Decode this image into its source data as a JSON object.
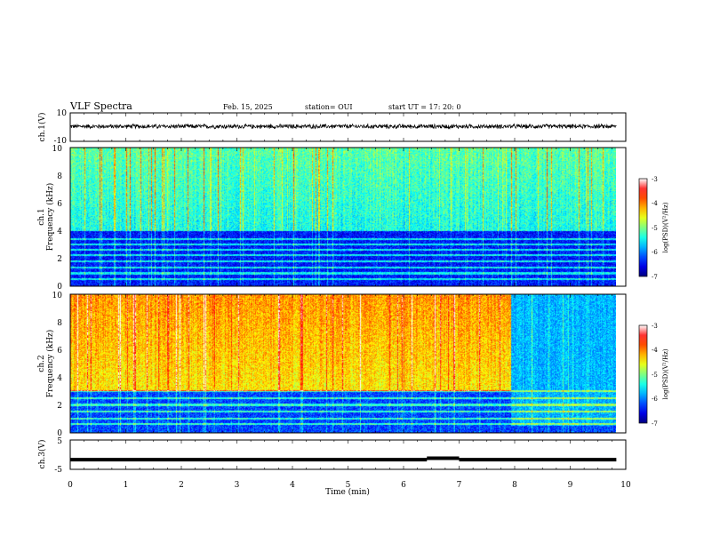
{
  "header": {
    "title": "VLF Spectra",
    "date": "Feb. 15, 2025",
    "station": "station= OUI",
    "start": "start  UT  =   17: 20: 0"
  },
  "colors": {
    "spectrogram_palette": [
      "#00007f",
      "#0000ff",
      "#0080ff",
      "#00ffff",
      "#80ff80",
      "#ffff00",
      "#ff8000",
      "#ff0000",
      "#ffffff"
    ],
    "waveform": "#000000"
  },
  "chart_data": [
    {
      "type": "line",
      "title": "",
      "xlabel": "",
      "ylabel": "ch.1(V)",
      "xlim": [
        0,
        10
      ],
      "ylim": [
        -10,
        10
      ],
      "yticks": [
        "10",
        "-10"
      ],
      "data_end_min": 9.83,
      "series": [
        {
          "baseline_v": 0.5,
          "noise_amplitude_v": 1.5
        }
      ]
    },
    {
      "type": "heatmap",
      "ylabel": "Frequency (kHz)",
      "ylabel_prefix": "ch.1",
      "xlim": [
        0,
        10
      ],
      "ylim": [
        0,
        10
      ],
      "yticks": [
        "0",
        "2",
        "4",
        "6",
        "8",
        "10"
      ],
      "data_end_min": 9.83,
      "colorbar": {
        "label": "log(PSD)(V²/Hz)",
        "ticks": [
          "-3",
          "-4",
          "-5",
          "-6",
          "-7"
        ],
        "range": [
          -7,
          -3
        ]
      },
      "features": {
        "low_band_khz": [
          0,
          4
        ],
        "upper_band_khz": [
          4,
          10
        ],
        "low_band_log_psd": -6.5,
        "upper_band_log_psd": -5.6,
        "narrowband_lines_khz": [
          0.5,
          0.9,
          1.3,
          1.8,
          2.2,
          2.6,
          3.0,
          3.4
        ]
      }
    },
    {
      "type": "heatmap",
      "ylabel": "Frequency (kHz)",
      "ylabel_prefix": "ch.2",
      "xlim": [
        0,
        10
      ],
      "ylim": [
        0,
        10
      ],
      "yticks": [
        "0",
        "2",
        "4",
        "6",
        "8",
        "10"
      ],
      "data_end_min": 9.83,
      "colorbar": {
        "label": "log(PSD)(V²/Hz)",
        "ticks": [
          "-3",
          "-4",
          "-5",
          "-6",
          "-7"
        ],
        "range": [
          -7,
          -3
        ]
      },
      "features": {
        "low_band_khz": [
          0,
          3
        ],
        "upper_band_khz": [
          3,
          10
        ],
        "low_band_log_psd": -6.3,
        "upper_band_log_psd": -4.6,
        "quiet_region_after_min": 7.95,
        "narrowband_lines_khz": [
          0.6,
          1.0,
          1.5,
          2.0,
          2.5,
          3.0
        ]
      }
    },
    {
      "type": "line",
      "ylabel": "ch.3(V)",
      "xlabel": "Time (min)",
      "xlim": [
        0,
        10
      ],
      "ylim": [
        -5,
        5
      ],
      "yticks": [
        "5",
        "-5"
      ],
      "xticks": [
        "0",
        "1",
        "2",
        "3",
        "4",
        "5",
        "6",
        "7",
        "8",
        "9",
        "10"
      ],
      "data_end_min": 9.83,
      "series": [
        {
          "level_v": -1.7,
          "gap_start_min": 6.42,
          "gap_end_min": 7.0,
          "gap_level_v": -1.2
        }
      ]
    }
  ]
}
